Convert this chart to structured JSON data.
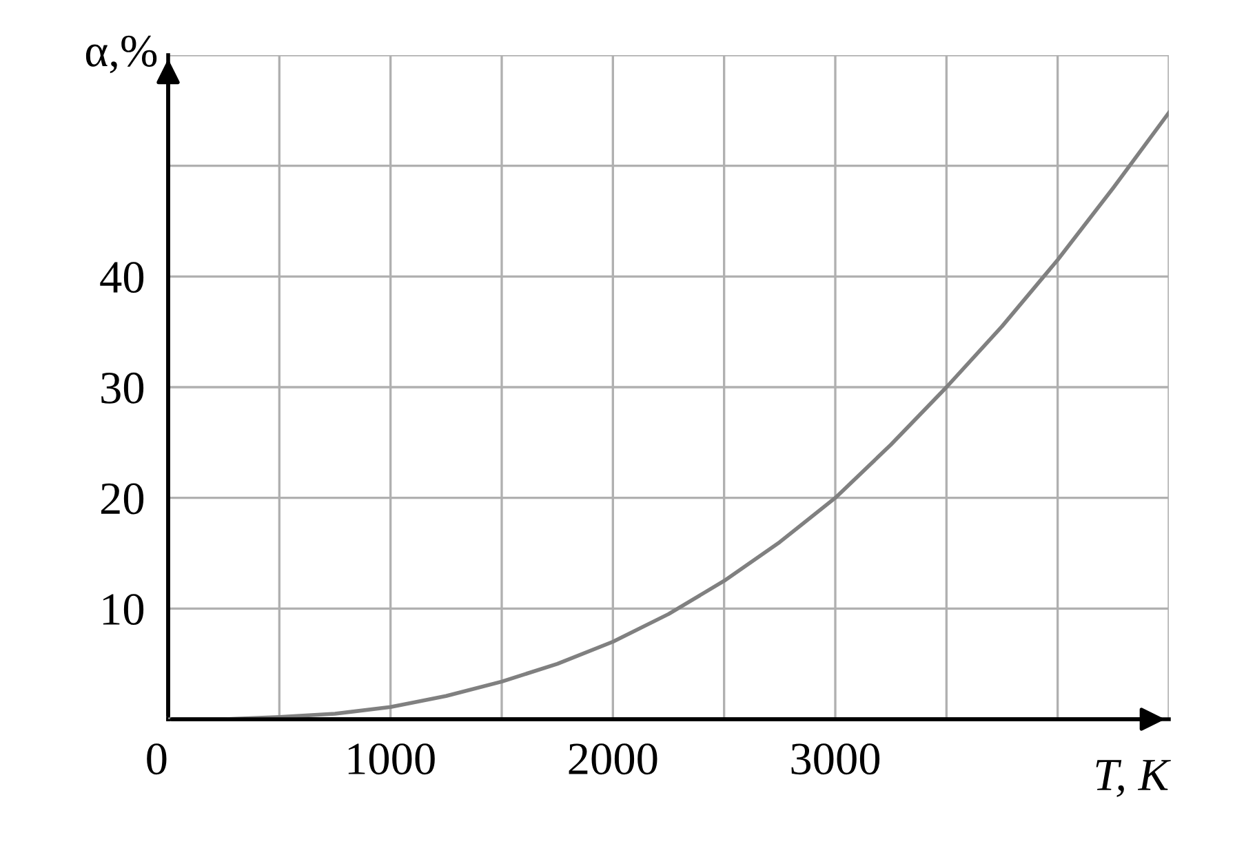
{
  "chart_data": {
    "type": "line",
    "xlabel": "T, К",
    "ylabel": "α,%",
    "x": [
      0,
      250,
      500,
      750,
      1000,
      1250,
      1500,
      1750,
      2000,
      2250,
      2500,
      2750,
      3000,
      3250,
      3500,
      3750,
      4000,
      4250,
      4500
    ],
    "series": [
      {
        "color": "#808080",
        "values": [
          0,
          0,
          0.2,
          0.5,
          1.1,
          2.1,
          3.4,
          5.0,
          7.0,
          9.5,
          12.5,
          16.0,
          20.0,
          24.8,
          30.0,
          35.5,
          41.5,
          48.0,
          54.8
        ]
      }
    ],
    "xlim": [
      0,
      4500
    ],
    "ylim": [
      0,
      60
    ],
    "xticks": [
      {
        "value": 0,
        "label": "0"
      },
      {
        "value": 500,
        "label": null
      },
      1000,
      {
        "value": 1500,
        "label": null
      },
      2000,
      {
        "value": 2500,
        "label": null
      },
      3000,
      {
        "value": 3500,
        "label": null
      },
      {
        "value": 4000,
        "label": null
      },
      {
        "value": 4500,
        "label": null
      }
    ],
    "yticks": [
      {
        "value": 0,
        "label": null
      },
      10,
      20,
      30,
      40,
      {
        "value": 50,
        "label": null
      },
      {
        "value": 60,
        "label": null
      }
    ],
    "grid": true,
    "legend": false,
    "marker": "none",
    "line_style": "solid"
  }
}
